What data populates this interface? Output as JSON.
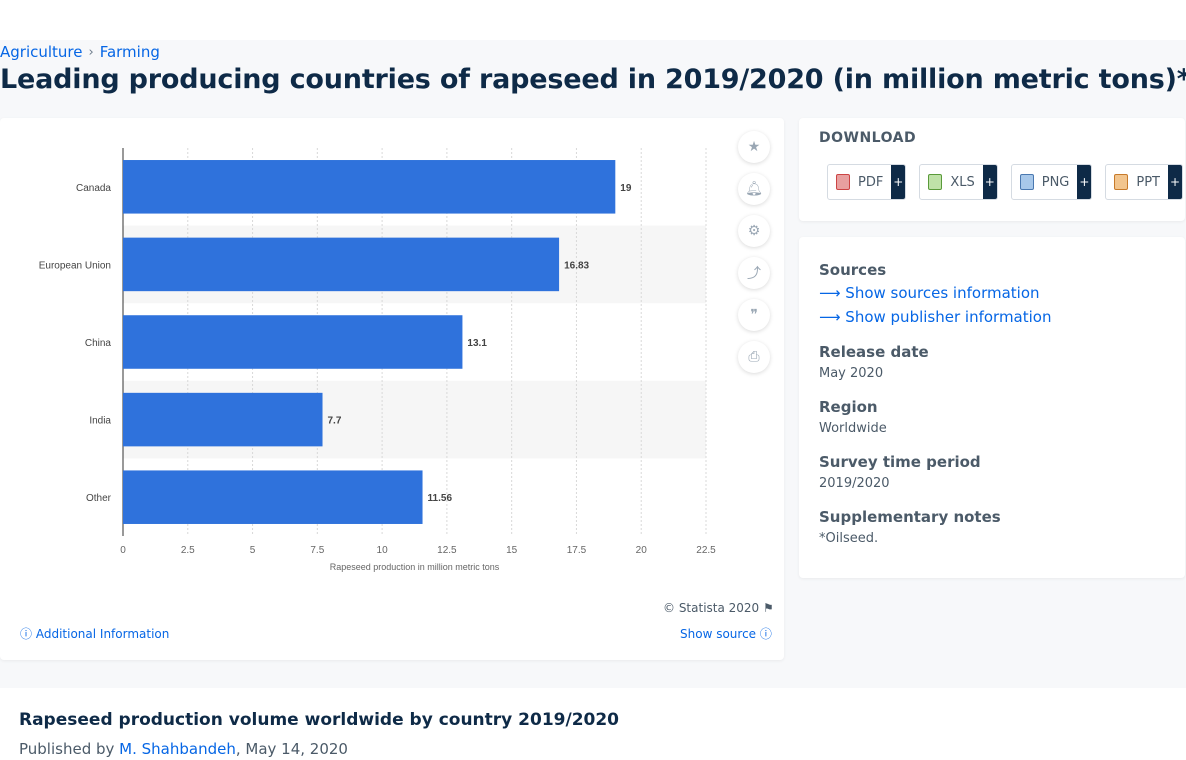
{
  "breadcrumb": {
    "item1": "Agriculture",
    "sep": "›",
    "item2": "Farming"
  },
  "page_title": "Leading producing countries of rapeseed in 2019/2020 (in million metric tons)*",
  "chart_data": {
    "type": "bar",
    "orientation": "horizontal",
    "categories": [
      "Canada",
      "European Union",
      "China",
      "India",
      "Other"
    ],
    "values": [
      19,
      16.83,
      13.1,
      7.7,
      11.56
    ],
    "value_labels": [
      "19",
      "16.83",
      "13.1",
      "7.7",
      "11.56"
    ],
    "xlabel": "Rapeseed production in million metric tons",
    "ylabel": "",
    "xlim": [
      0,
      22.5
    ],
    "xticks": [
      "0",
      "2.5",
      "5",
      "7.5",
      "10",
      "12.5",
      "15",
      "17.5",
      "20",
      "22.5"
    ],
    "grid": true,
    "bar_color": "#2f72dc"
  },
  "chart_footer": {
    "copyright": "© Statista 2020",
    "additional_info": "Additional Information",
    "show_source": "Show source"
  },
  "tools": [
    "star-icon",
    "bell-icon",
    "gear-icon",
    "share-icon",
    "quote-icon",
    "print-icon"
  ],
  "download": {
    "title": "DOWNLOAD",
    "buttons": [
      {
        "label": "PDF",
        "plus": "+"
      },
      {
        "label": "XLS",
        "plus": "+"
      },
      {
        "label": "PNG",
        "plus": "+"
      },
      {
        "label": "PPT",
        "plus": "+"
      }
    ]
  },
  "info": {
    "sources_heading": "Sources",
    "show_sources": "Show sources information",
    "show_publisher": "Show publisher information",
    "release_heading": "Release date",
    "release_value": "May 2020",
    "region_heading": "Region",
    "region_value": "Worldwide",
    "survey_heading": "Survey time period",
    "survey_value": "2019/2020",
    "notes_heading": "Supplementary notes",
    "notes_value": "*Oilseed."
  },
  "bottom": {
    "title": "Rapeseed production volume worldwide by country 2019/2020",
    "published_by": "Published by",
    "author": "M. Shahbandeh",
    "date": ", May 14, 2020"
  }
}
